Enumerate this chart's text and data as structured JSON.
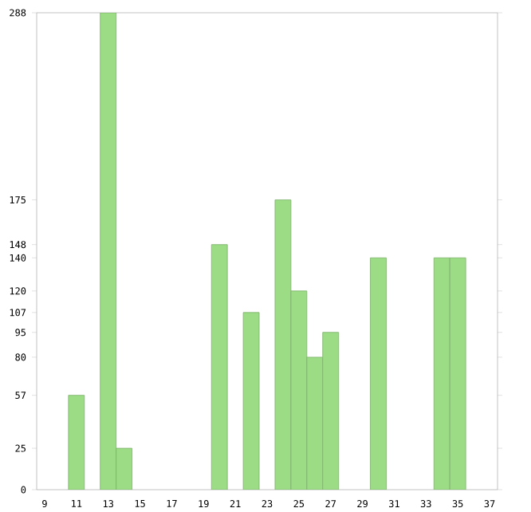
{
  "chart_data": {
    "type": "bar",
    "categories": [
      "9",
      null,
      "11",
      null,
      "13",
      null,
      "15",
      null,
      "17",
      null,
      "19",
      null,
      "21",
      null,
      "23",
      null,
      "25",
      null,
      "27",
      null,
      "29",
      null,
      "31",
      null,
      "33",
      null,
      "35",
      null,
      "37"
    ],
    "values": [
      null,
      null,
      57,
      null,
      288,
      25,
      null,
      null,
      null,
      null,
      null,
      148,
      null,
      107,
      null,
      175,
      120,
      80,
      95,
      null,
      null,
      140,
      null,
      null,
      null,
      140,
      140,
      null,
      null
    ],
    "color": "#9bdc85",
    "ylim": [
      0,
      288
    ],
    "yticks": [
      0,
      25,
      57,
      80,
      95,
      107,
      120,
      140,
      148,
      175,
      288
    ],
    "grid": false
  }
}
